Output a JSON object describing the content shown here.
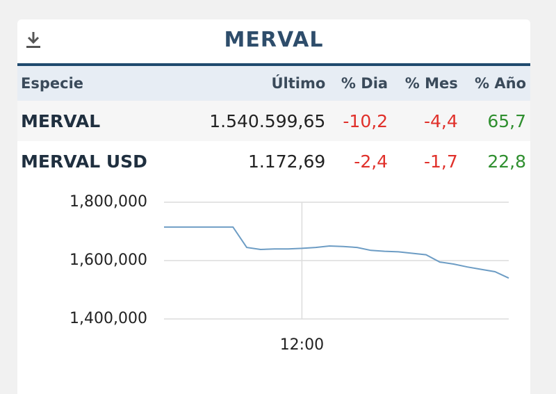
{
  "header": {
    "title": "MERVAL"
  },
  "table": {
    "columns": [
      "Especie",
      "Último",
      "% Dia",
      "% Mes",
      "% Año"
    ],
    "rows": [
      [
        "MERVAL",
        "1.540.599,65",
        "-10,2",
        "-4,4",
        "65,7"
      ],
      [
        "MERVAL USD",
        "1.172,69",
        "-2,4",
        "-1,7",
        "22,8"
      ]
    ]
  },
  "chart_data": {
    "type": "line",
    "categories": [
      null,
      null,
      null,
      null,
      null,
      null,
      null,
      null,
      null,
      null,
      "12:00",
      null,
      null,
      null,
      null,
      null,
      null,
      null,
      null,
      null,
      null,
      null,
      null,
      null,
      null,
      null
    ],
    "values": [
      1715000,
      1715000,
      1715000,
      1715000,
      1715000,
      1715000,
      1645000,
      1638000,
      1640000,
      1640000,
      1642000,
      1645000,
      1650000,
      1648000,
      1645000,
      1635000,
      1632000,
      1630000,
      1625000,
      1620000,
      1595000,
      1588000,
      1578000,
      1570000,
      1562000,
      1540000
    ],
    "color": "#6c9cc4",
    "ylim": [
      1400000,
      1800000
    ],
    "yticks": [
      {
        "value": 1400000,
        "label": "1,400,000"
      },
      {
        "value": 1600000,
        "label": "1,600,000"
      },
      {
        "value": 1800000,
        "label": "1,800,000"
      }
    ],
    "grid": true
  }
}
